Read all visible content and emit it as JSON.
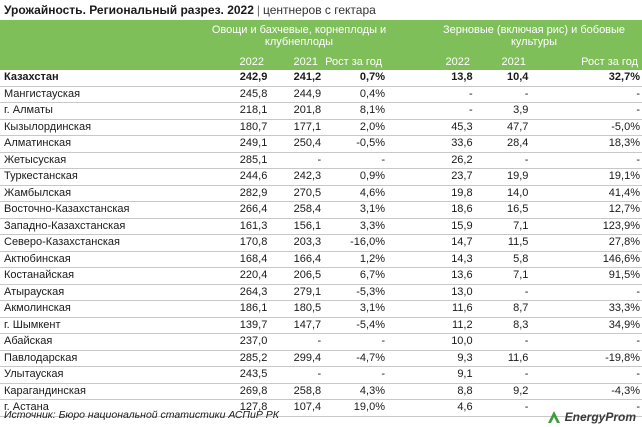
{
  "title": {
    "main": "Урожайность. Региональный разрез. 2022",
    "separator": "|",
    "sub": "центнеров с гектара"
  },
  "header": {
    "group1": "Овощи и бахчевые, корнеплоды и клубнеплоды",
    "group2": "Зерновые (включая рис) и бобовые культуры",
    "cols": [
      "2022",
      "2021",
      "Рост за год",
      "2022",
      "2021",
      "Рост за год"
    ]
  },
  "colors": {
    "header_bg": "#7fbf5a",
    "header_text": "#ffffff",
    "row_border": "#c8c8c8",
    "logo_green": "#3f9d3a"
  },
  "rows": [
    {
      "name": "Казахстан",
      "v1": "242,9",
      "v2": "241,2",
      "v3": "0,7%",
      "v4": "13,8",
      "v5": "10,4",
      "v6": "32,7%"
    },
    {
      "name": "Мангистауская",
      "v1": "245,8",
      "v2": "244,9",
      "v3": "0,4%",
      "v4": "-",
      "v5": "-",
      "v6": "-"
    },
    {
      "name": "г. Алматы",
      "v1": "218,1",
      "v2": "201,8",
      "v3": "8,1%",
      "v4": "-",
      "v5": "3,9",
      "v6": "-"
    },
    {
      "name": "Кызылординская",
      "v1": "180,7",
      "v2": "177,1",
      "v3": "2,0%",
      "v4": "45,3",
      "v5": "47,7",
      "v6": "-5,0%"
    },
    {
      "name": "Алматинская",
      "v1": "249,1",
      "v2": "250,4",
      "v3": "-0,5%",
      "v4": "33,6",
      "v5": "28,4",
      "v6": "18,3%"
    },
    {
      "name": "Жетысуская",
      "v1": "285,1",
      "v2": "-",
      "v3": "-",
      "v4": "26,2",
      "v5": "-",
      "v6": "-"
    },
    {
      "name": "Туркестанская",
      "v1": "244,6",
      "v2": "242,3",
      "v3": "0,9%",
      "v4": "23,7",
      "v5": "19,9",
      "v6": "19,1%"
    },
    {
      "name": "Жамбылская",
      "v1": "282,9",
      "v2": "270,5",
      "v3": "4,6%",
      "v4": "19,8",
      "v5": "14,0",
      "v6": "41,4%"
    },
    {
      "name": "Восточно-Казахстанская",
      "v1": "266,4",
      "v2": "258,4",
      "v3": "3,1%",
      "v4": "18,6",
      "v5": "16,5",
      "v6": "12,7%"
    },
    {
      "name": "Западно-Казахстанская",
      "v1": "161,3",
      "v2": "156,1",
      "v3": "3,3%",
      "v4": "15,9",
      "v5": "7,1",
      "v6": "123,9%"
    },
    {
      "name": "Северо-Казахстанская",
      "v1": "170,8",
      "v2": "203,3",
      "v3": "-16,0%",
      "v4": "14,7",
      "v5": "11,5",
      "v6": "27,8%"
    },
    {
      "name": "Актюбинская",
      "v1": "168,4",
      "v2": "166,4",
      "v3": "1,2%",
      "v4": "14,3",
      "v5": "5,8",
      "v6": "146,6%"
    },
    {
      "name": "Костанайская",
      "v1": "220,4",
      "v2": "206,5",
      "v3": "6,7%",
      "v4": "13,6",
      "v5": "7,1",
      "v6": "91,5%"
    },
    {
      "name": "Атырауская",
      "v1": "264,3",
      "v2": "279,1",
      "v3": "-5,3%",
      "v4": "13,0",
      "v5": "-",
      "v6": "-"
    },
    {
      "name": "Акмолинская",
      "v1": "186,1",
      "v2": "180,5",
      "v3": "3,1%",
      "v4": "11,6",
      "v5": "8,7",
      "v6": "33,3%"
    },
    {
      "name": "г. Шымкент",
      "v1": "139,7",
      "v2": "147,7",
      "v3": "-5,4%",
      "v4": "11,2",
      "v5": "8,3",
      "v6": "34,9%"
    },
    {
      "name": "Абайская",
      "v1": "237,0",
      "v2": "-",
      "v3": "-",
      "v4": "10,0",
      "v5": "-",
      "v6": "-"
    },
    {
      "name": "Павлодарская",
      "v1": "285,2",
      "v2": "299,4",
      "v3": "-4,7%",
      "v4": "9,3",
      "v5": "11,6",
      "v6": "-19,8%"
    },
    {
      "name": "Улытауская",
      "v1": "243,5",
      "v2": "-",
      "v3": "-",
      "v4": "9,1",
      "v5": "-",
      "v6": "-"
    },
    {
      "name": "Карагандинская",
      "v1": "269,8",
      "v2": "258,8",
      "v3": "4,3%",
      "v4": "8,8",
      "v5": "9,2",
      "v6": "-4,3%"
    },
    {
      "name": "г. Астана",
      "v1": "127,8",
      "v2": "107,4",
      "v3": "19,0%",
      "v4": "4,6",
      "v5": "-",
      "v6": "-"
    }
  ],
  "footer": {
    "source": "Источник: Бюро национальной статистики АСПиР РК",
    "brand": "EnergyProm",
    "logo_icon": "energyprom-logo-icon"
  }
}
